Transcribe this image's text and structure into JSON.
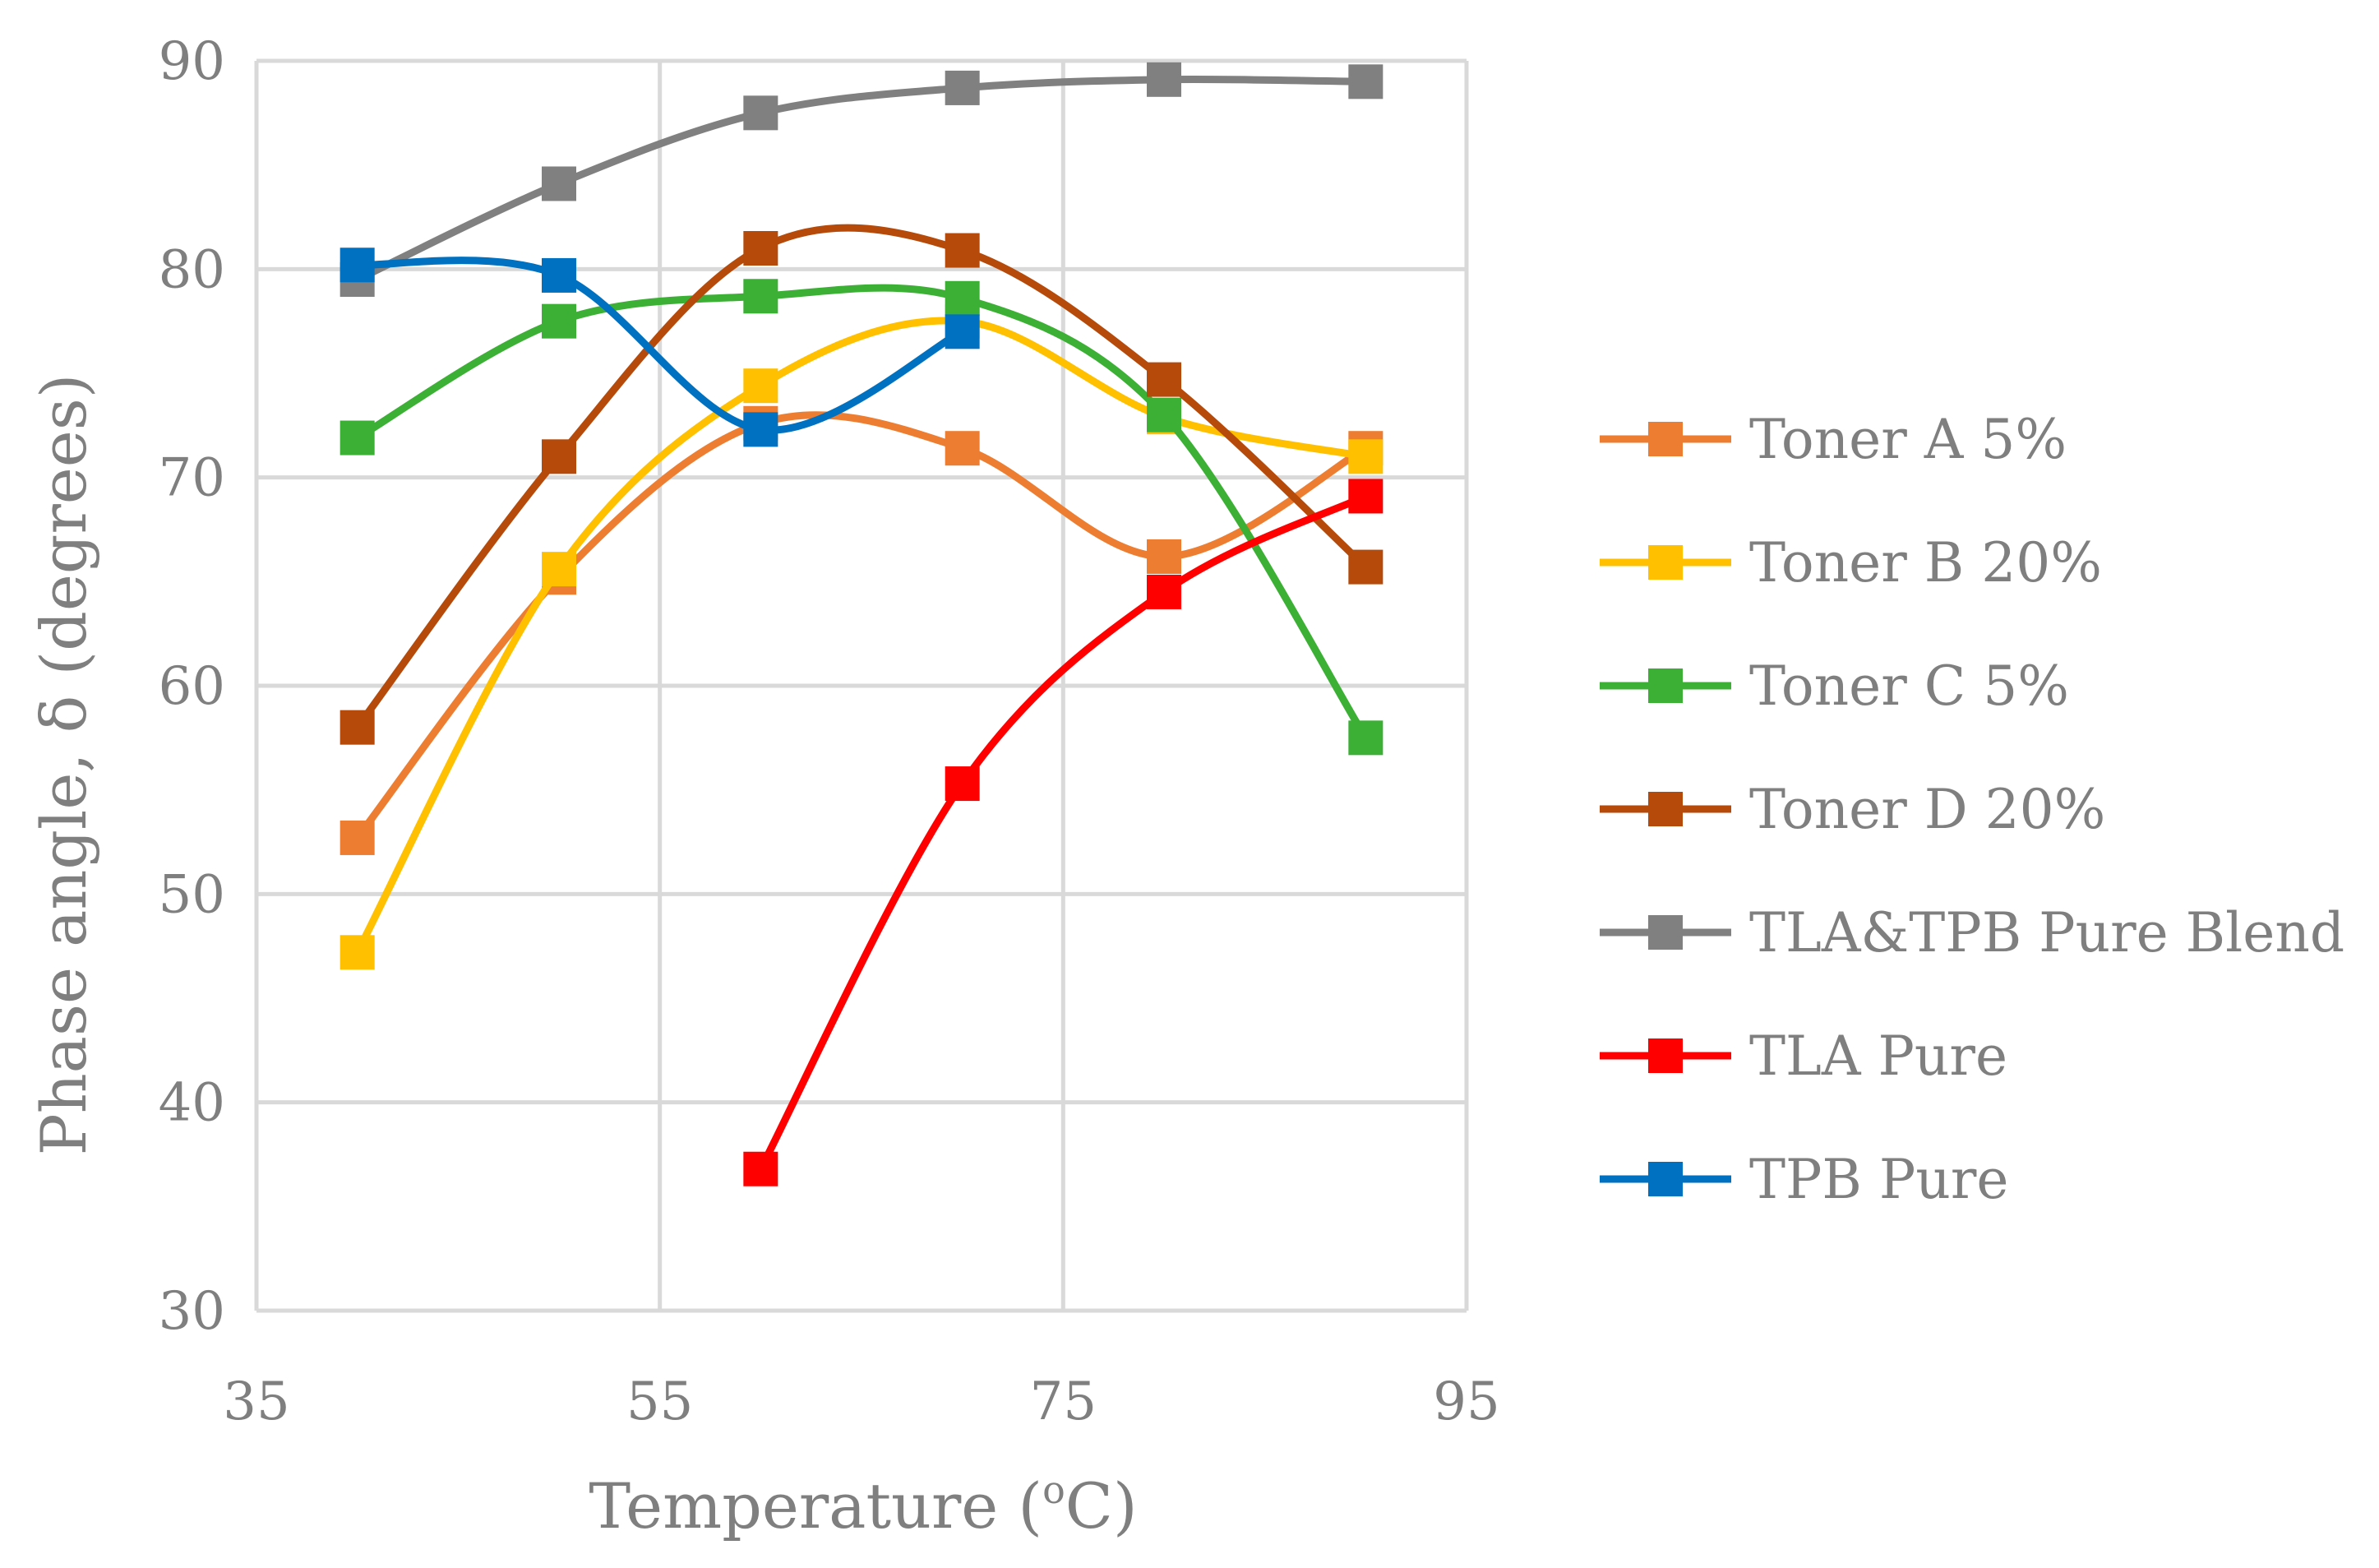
{
  "chart_data": {
    "type": "line",
    "title": "",
    "xlabel": "Temperature (",
    "xlabel_sup": "o",
    "xlabel_tail": "C)",
    "ylabel": "Phase angle, δ (degrees)",
    "xlim": [
      35,
      95
    ],
    "ylim": [
      30,
      90
    ],
    "xticks": [
      35,
      55,
      75,
      95
    ],
    "yticks": [
      30,
      40,
      50,
      60,
      70,
      80,
      90
    ],
    "grid": true,
    "legend_position": "right",
    "x": [
      40,
      50,
      60,
      70,
      80,
      90
    ],
    "series": [
      {
        "name": "Toner A 5%",
        "color": "#ed7d31",
        "values": [
          52.7,
          65.2,
          72.6,
          71.4,
          66.2,
          71.4
        ]
      },
      {
        "name": "Toner B 20%",
        "color": "#ffc000",
        "values": [
          47.2,
          65.6,
          74.4,
          77.5,
          72.9,
          71.0
        ]
      },
      {
        "name": "Toner C 5%",
        "color": "#3cb035",
        "values": [
          71.9,
          77.5,
          78.7,
          78.6,
          73.0,
          57.5
        ]
      },
      {
        "name": "Toner D 20%",
        "color": "#b54a0a",
        "values": [
          58.0,
          71.0,
          81.0,
          80.9,
          74.7,
          65.7
        ]
      },
      {
        "name": "TLA&TPB Pure Blend",
        "color": "#808080",
        "values": [
          79.5,
          84.1,
          87.5,
          88.7,
          89.1,
          89.0
        ]
      },
      {
        "name": "TLA Pure",
        "color": "#ff0000",
        "values": [
          null,
          null,
          36.8,
          55.3,
          64.5,
          69.1
        ]
      },
      {
        "name": "TPB Pure",
        "color": "#0070c0",
        "values": [
          80.2,
          79.7,
          72.3,
          77.0,
          null,
          null
        ]
      }
    ]
  }
}
